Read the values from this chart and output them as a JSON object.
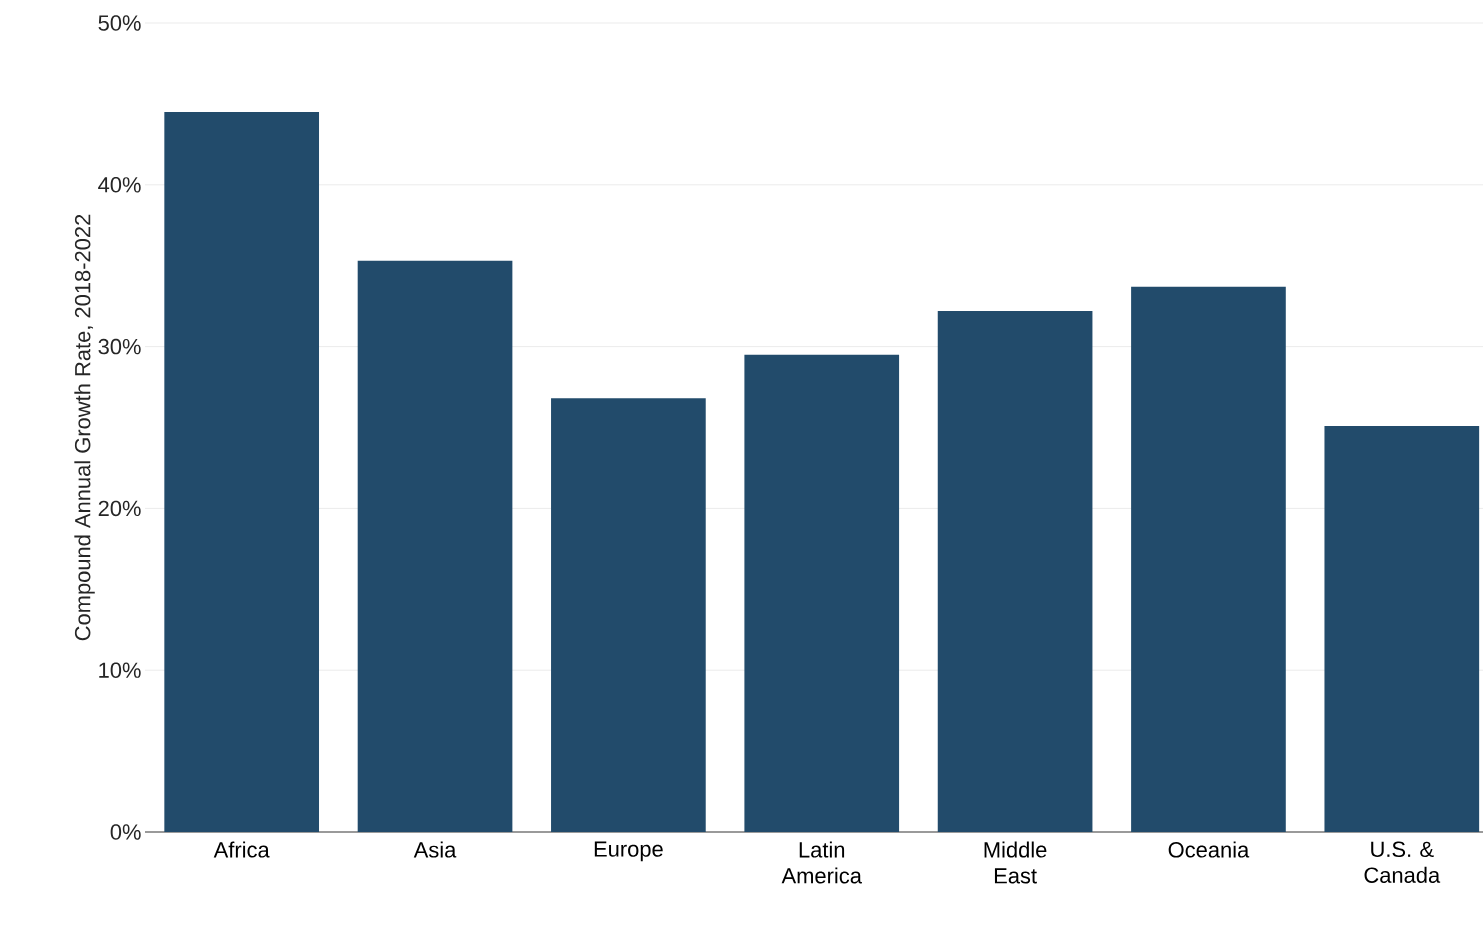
{
  "chart_data": {
    "type": "bar",
    "ylabel": "Compound Annual Growth Rate, 2018-2022",
    "categories": [
      "Africa",
      "Asia",
      "Europe",
      "Latin America",
      "Middle East",
      "Oceania",
      "U.S. & Canada"
    ],
    "values": [
      44.5,
      35.3,
      26.8,
      29.5,
      32.2,
      33.7,
      25.1
    ],
    "color": "#224b6b",
    "ylim": [
      0,
      50
    ],
    "yticks": [
      {
        "value": 0,
        "label": "0%"
      },
      {
        "value": 10,
        "label": "10%"
      },
      {
        "value": 20,
        "label": "20%"
      },
      {
        "value": 30,
        "label": "30%"
      },
      {
        "value": 40,
        "label": "40%"
      },
      {
        "value": 50,
        "label": "50%"
      }
    ],
    "grid": "y"
  }
}
